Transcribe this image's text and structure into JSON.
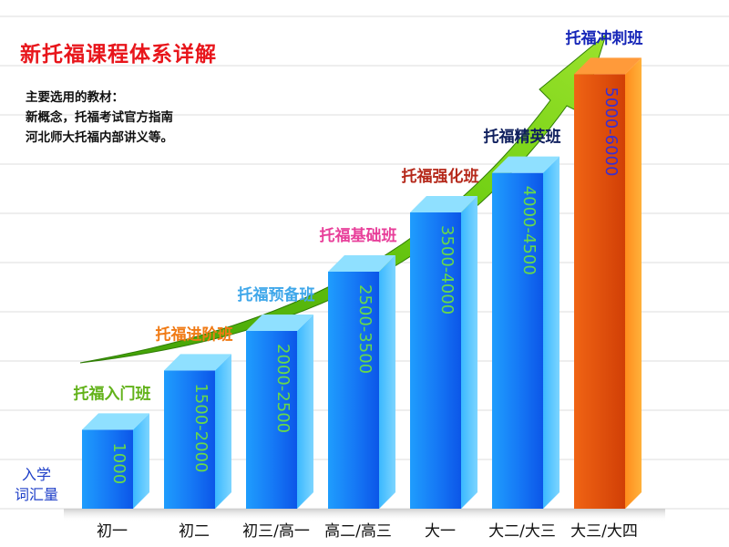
{
  "title": "新托福课程体系详解",
  "materials": [
    "主要选用的教材：",
    "新概念，托福考试官方指南",
    "河北师大托福内部讲义等。"
  ],
  "ylabel_lines": [
    "入学",
    "词汇量"
  ],
  "colors": {
    "text_dark": "#111111",
    "value_blue": "#3a3a3a",
    "value_orange": "#3a2fd0",
    "grade_text": "#111111"
  },
  "chart_data": {
    "type": "bar",
    "categories": [
      "初一",
      "初二",
      "初三/高一",
      "高二/高三",
      "大一",
      "大二/大三",
      "大三/大四"
    ],
    "series": [
      {
        "values": [
          1000,
          1750,
          2250,
          3000,
          3750,
          4250,
          5500
        ],
        "value_labels": [
          "1000",
          "1500-2000",
          "2000-2500",
          "2500-3500",
          "3500-4000",
          "4000-4500",
          "5000-6000"
        ],
        "course_names": [
          "托福入门班",
          "托福进阶班",
          "托福预备班",
          "托福基础班",
          "托福强化班",
          "托福精英班",
          "托福冲刺班"
        ],
        "course_colors": [
          "#62b21a",
          "#f07a14",
          "#3fa7ea",
          "#e83f9a",
          "#b5281a",
          "#10205e",
          "#1626b8"
        ],
        "bar_colors": [
          "blue",
          "blue",
          "blue",
          "blue",
          "blue",
          "blue",
          "orange"
        ]
      }
    ],
    "ylabel": "入学 词汇量",
    "ylim": [
      0,
      6000
    ],
    "grid": true,
    "legend": "none"
  }
}
